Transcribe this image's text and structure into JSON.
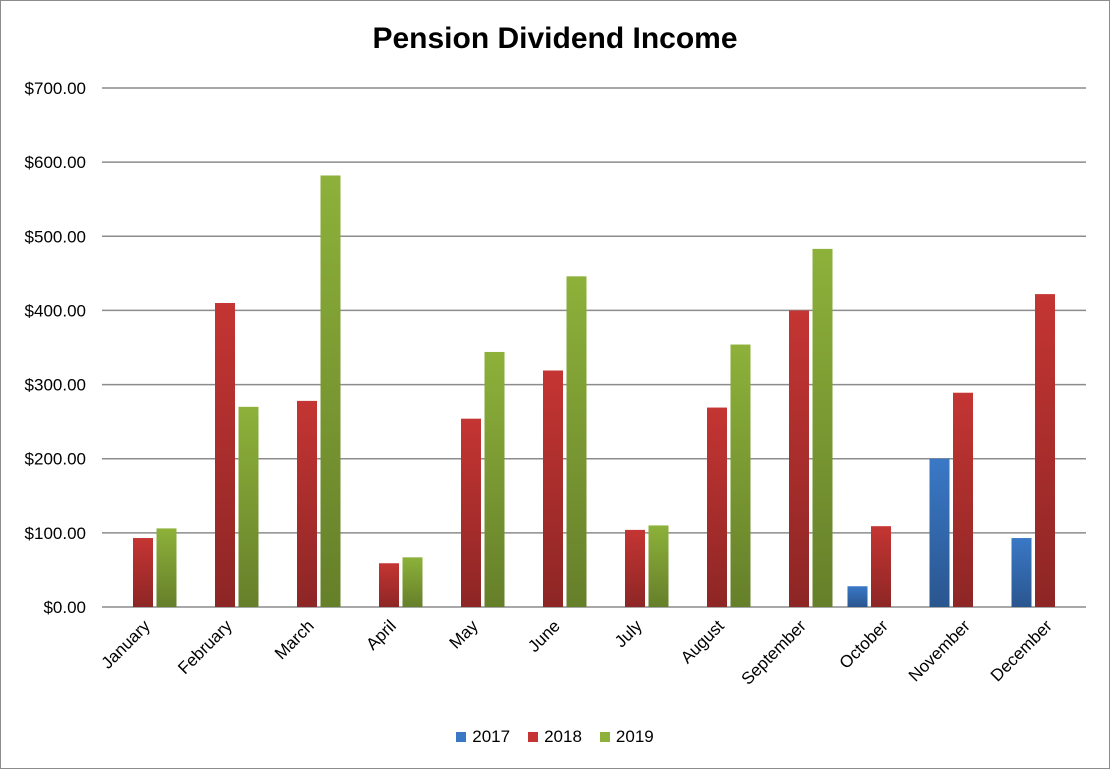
{
  "chart_data": {
    "type": "bar",
    "title": "Pension Dividend Income",
    "xlabel": "",
    "ylabel": "",
    "categories": [
      "January",
      "February",
      "March",
      "April",
      "May",
      "June",
      "July",
      "August",
      "September",
      "October",
      "November",
      "December"
    ],
    "series": [
      {
        "name": "2017",
        "color": "#3a78c6",
        "values": [
          0,
          0,
          0,
          0,
          0,
          0,
          0,
          0,
          0,
          28,
          200,
          93
        ]
      },
      {
        "name": "2018",
        "color": "#c43533",
        "values": [
          93,
          410,
          278,
          59,
          254,
          319,
          104,
          269,
          400,
          109,
          289,
          422
        ]
      },
      {
        "name": "2019",
        "color": "#8db13a",
        "values": [
          106,
          270,
          582,
          67,
          344,
          446,
          110,
          354,
          483,
          0,
          0,
          0
        ]
      }
    ],
    "ylim": [
      0,
      700
    ],
    "yticks": [
      0,
      100,
      200,
      300,
      400,
      500,
      600,
      700
    ],
    "ytick_labels": [
      "$0.00",
      "$100.00",
      "$200.00",
      "$300.00",
      "$400.00",
      "$500.00",
      "$600.00",
      "$700.00"
    ],
    "grid": true,
    "legend_position": "bottom"
  }
}
